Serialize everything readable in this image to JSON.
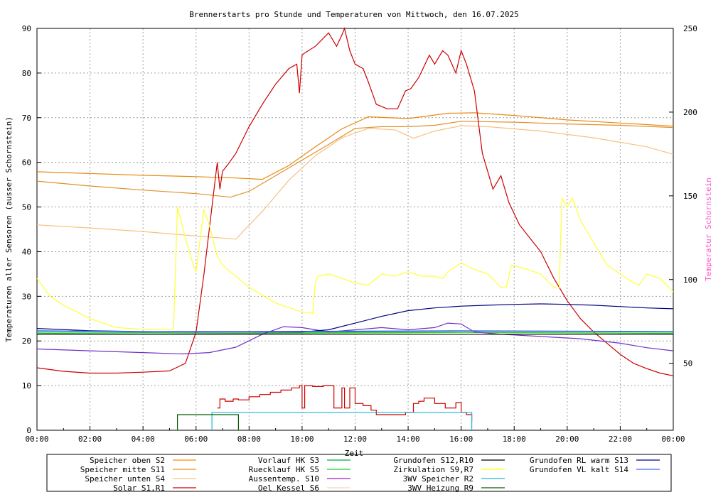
{
  "chart_data": {
    "type": "line",
    "title": "Brennerstarts pro Stunde und Temperaturen von Mittwoch, den 16.07.2025",
    "xlabel": "Zeit",
    "ylabel": "Temperaturen aller Sensoren (ausser Schornstein)",
    "y2label": "Temperatur Schornstein",
    "xlim": [
      0,
      24
    ],
    "ylim": [
      0,
      90
    ],
    "y2lim": [
      10,
      250
    ],
    "grid": true,
    "x_ticks": [
      "00:00",
      "02:00",
      "04:00",
      "06:00",
      "08:00",
      "10:00",
      "12:00",
      "14:00",
      "16:00",
      "18:00",
      "20:00",
      "22:00",
      "00:00"
    ],
    "y_ticks": [
      "0",
      "10",
      "20",
      "30",
      "40",
      "50",
      "60",
      "70",
      "80",
      "90"
    ],
    "y2_ticks": [
      "50",
      "100",
      "150",
      "200",
      "250"
    ],
    "legend_position": "bottom",
    "legend": [
      {
        "label": "Speicher oben",
        "code": "S2",
        "color": "#ff8c00"
      },
      {
        "label": "Speicher mitte",
        "code": "S11",
        "color": "#e8901c"
      },
      {
        "label": "Speicher unten",
        "code": "S4",
        "color": "#f8c080"
      },
      {
        "label": "Solar",
        "code": "S1,R1",
        "color": "#cc0000"
      },
      {
        "label": "Vorlauf HK",
        "code": "S3",
        "color": "#00aa44"
      },
      {
        "label": "Ruecklauf HK",
        "code": "S5",
        "color": "#22cc22"
      },
      {
        "label": "Aussentemp.",
        "code": "S10",
        "color": "#a020c0"
      },
      {
        "label": "Oel Kessel",
        "code": "S6",
        "color": "#f0d8c0"
      },
      {
        "label": "Grundofen",
        "code": "S12,R10",
        "color": "#000000"
      },
      {
        "label": "Zirkulation",
        "code": "S9,R7",
        "color": "#ffff00"
      },
      {
        "label": "3WV Speicher",
        "code": "R2",
        "color": "#22b8d8"
      },
      {
        "label": "3WV Heizung",
        "code": "R9",
        "color": "#006000"
      },
      {
        "label": "Grundofen RL warm",
        "code": "S13",
        "color": "#000080"
      },
      {
        "label": "Grundofen VL kalt",
        "code": "S14",
        "color": "#4466ff"
      }
    ],
    "series": [
      {
        "name": "Speicher oben S2",
        "axis": "y",
        "color": "#e88a10",
        "x": [
          0,
          2,
          4,
          6,
          7.5,
          8.5,
          9.5,
          10.5,
          11.5,
          12.5,
          14,
          15.5,
          16.5,
          18,
          20,
          22,
          24
        ],
        "y": [
          57.9,
          57.5,
          57.1,
          56.8,
          56.5,
          56.2,
          59.3,
          63.5,
          67.5,
          70.2,
          69.8,
          71.0,
          71.1,
          70.5,
          69.5,
          68.8,
          68.1
        ]
      },
      {
        "name": "Speicher mitte S11",
        "axis": "y",
        "color": "#e0902a",
        "x": [
          0,
          2,
          4,
          6,
          7.3,
          8,
          9,
          10,
          11,
          12,
          13,
          14,
          15,
          16,
          18,
          20,
          22,
          24
        ],
        "y": [
          55.8,
          54.7,
          53.8,
          53.0,
          52.2,
          53.5,
          57.0,
          60.5,
          64.0,
          67.6,
          68.0,
          68.0,
          68.3,
          69.2,
          69.0,
          68.6,
          68.3,
          67.8
        ]
      },
      {
        "name": "Speicher unten S4",
        "axis": "y",
        "color": "#f8c080",
        "x": [
          0,
          2,
          4,
          6,
          7.5,
          8.5,
          9.5,
          10.5,
          11.5,
          12.5,
          13.5,
          14.2,
          15,
          16,
          17,
          19,
          21,
          23,
          24
        ],
        "y": [
          46.0,
          45.3,
          44.5,
          43.5,
          42.8,
          49.0,
          56.0,
          61.5,
          65.5,
          67.6,
          67.3,
          65.4,
          67.0,
          68.2,
          68.0,
          67.0,
          65.5,
          63.5,
          61.8
        ]
      },
      {
        "name": "Solar S1,R1",
        "axis": "y",
        "color": "#cc0000",
        "x": [
          0,
          1,
          2,
          3,
          4,
          5,
          5.6,
          6,
          6.3,
          6.6,
          6.8,
          6.9,
          7.0,
          7.2,
          7.5,
          8,
          8.5,
          9,
          9.5,
          9.8,
          9.9,
          10.0,
          10.1,
          10.5,
          11,
          11.3,
          11.5,
          11.6,
          11.8,
          12,
          12.3,
          12.5,
          12.8,
          13.2,
          13.6,
          13.9,
          14.1,
          14.4,
          14.8,
          15,
          15.3,
          15.5,
          15.8,
          16,
          16.2,
          16.5,
          16.8,
          17.2,
          17.5,
          17.8,
          18.2,
          18.6,
          19,
          19.5,
          20,
          20.5,
          21,
          21.5,
          22,
          22.5,
          23,
          23.5,
          24
        ],
        "y": [
          14.0,
          13.2,
          12.8,
          12.8,
          13.0,
          13.3,
          15.0,
          22.0,
          35.0,
          50.0,
          60.0,
          54.0,
          58.0,
          59.5,
          62.0,
          68.0,
          73.0,
          77.5,
          81.0,
          82.0,
          75.5,
          84.0,
          84.5,
          86.0,
          89.0,
          86.0,
          88.5,
          90.0,
          85.0,
          82.0,
          81.0,
          78.0,
          73.0,
          72.0,
          72.0,
          76.0,
          76.5,
          79.0,
          84.0,
          82.0,
          85.0,
          84.0,
          80.0,
          85.0,
          82.0,
          76.0,
          62.0,
          54.0,
          57.0,
          51.0,
          46.0,
          43.0,
          40.0,
          34.0,
          29.0,
          25.0,
          22.0,
          19.5,
          17.0,
          15.0,
          13.8,
          12.8,
          12.2
        ]
      },
      {
        "name": "Vorlauf HK S3",
        "axis": "y",
        "color": "#00aa44",
        "x": [
          0,
          4,
          8,
          12,
          16,
          20,
          24
        ],
        "y": [
          22.0,
          21.9,
          22.0,
          22.0,
          22.2,
          22.1,
          22.0
        ]
      },
      {
        "name": "Ruecklauf HK S5",
        "axis": "y",
        "color": "#22cc22",
        "x": [
          0,
          4,
          8,
          12,
          16,
          20,
          24
        ],
        "y": [
          21.7,
          21.6,
          21.7,
          21.8,
          21.9,
          21.8,
          21.7
        ]
      },
      {
        "name": "Aussentemp. S10",
        "axis": "y",
        "color": "#7030c8",
        "x": [
          0,
          2,
          4,
          5.5,
          6.5,
          7.5,
          8.5,
          9.3,
          10,
          11,
          12,
          13,
          14,
          15,
          15.5,
          16,
          16.5,
          17.5,
          19,
          20.5,
          22,
          23,
          24
        ],
        "y": [
          18.2,
          17.8,
          17.4,
          17.1,
          17.4,
          18.6,
          21.5,
          23.2,
          23.0,
          22.0,
          22.5,
          23.0,
          22.5,
          23.0,
          24.0,
          23.8,
          22.0,
          21.5,
          21.0,
          20.5,
          19.5,
          18.5,
          17.8
        ]
      },
      {
        "name": "Zirkulation S9,R7",
        "axis": "y",
        "color": "#ffff33",
        "x": [
          0,
          0.5,
          1,
          2,
          3,
          4,
          5.1,
          5.15,
          5.3,
          5.6,
          5.9,
          6.0,
          6.3,
          6.5,
          6.8,
          7,
          8,
          9,
          10,
          10.4,
          10.5,
          10.6,
          11,
          11.5,
          12,
          12.5,
          13,
          13.5,
          14,
          14.5,
          15,
          15.3,
          15.5,
          16,
          16.5,
          17,
          17.5,
          17.7,
          17.9,
          18.5,
          19,
          19.5,
          19.7,
          19.8,
          20,
          20.2,
          20.5,
          21,
          21.5,
          22,
          22.5,
          22.7,
          23,
          23.5,
          24
        ],
        "y": [
          34.0,
          30.0,
          28.0,
          25.0,
          23.0,
          22.6,
          22.6,
          22.6,
          50.0,
          43.0,
          37.0,
          35.5,
          49.5,
          46.0,
          39.0,
          37.0,
          32.0,
          28.5,
          26.5,
          26.2,
          33.0,
          34.5,
          35.0,
          34.0,
          33.0,
          32.5,
          35.0,
          34.5,
          35.5,
          34.5,
          34.5,
          34.0,
          35.5,
          37.5,
          36.0,
          35.0,
          32.0,
          32.0,
          37.0,
          36.0,
          35.0,
          32.0,
          32.0,
          52.0,
          50.0,
          52.0,
          47.0,
          42.0,
          37.0,
          35.0,
          33.0,
          32.5,
          35.0,
          34.0,
          31.0
        ]
      },
      {
        "name": "Grundofen S12,R10",
        "axis": "y",
        "color": "#000000",
        "x": [
          0,
          24
        ],
        "y": [
          21.5,
          21.5
        ]
      },
      {
        "name": "Grundofen RL warm S13",
        "axis": "y",
        "color": "#000080",
        "x": [
          0,
          2,
          4,
          6,
          8,
          10,
          11,
          12,
          13,
          14,
          15,
          16,
          17,
          18,
          19,
          20,
          21,
          22,
          23,
          24
        ],
        "y": [
          22.8,
          22.3,
          22.1,
          22.0,
          22.0,
          22.0,
          22.5,
          24.0,
          25.5,
          26.8,
          27.4,
          27.8,
          28.0,
          28.2,
          28.3,
          28.2,
          28.0,
          27.7,
          27.4,
          27.2
        ]
      },
      {
        "name": "Grundofen VL kalt S14",
        "axis": "y",
        "color": "#4466ff",
        "x": [
          0,
          4,
          8,
          12,
          16,
          20,
          24
        ],
        "y": [
          22.3,
          22.1,
          22.1,
          22.2,
          22.3,
          22.2,
          22.1
        ]
      },
      {
        "name": "Brennerstarts",
        "axis": "y",
        "color": "#cc0000",
        "step": true,
        "x": [
          6.8,
          6.9,
          7.1,
          7.4,
          7.6,
          8.0,
          8.4,
          8.8,
          9.2,
          9.6,
          9.9,
          10.0,
          10.1,
          10.4,
          10.8,
          11.2,
          11.5,
          11.6,
          11.8,
          12.0,
          12.3,
          12.6,
          12.8,
          13.0,
          13.3,
          13.6,
          13.9,
          14.2,
          14.4,
          14.6,
          15.0,
          15.4,
          15.8,
          16.0,
          16.2,
          16.4
        ],
        "y": [
          5.0,
          7.0,
          6.5,
          7.0,
          6.8,
          7.5,
          8.0,
          8.5,
          9.0,
          9.5,
          10.0,
          5.0,
          10.0,
          9.8,
          10.0,
          5.0,
          9.5,
          5.0,
          9.5,
          6.0,
          5.5,
          4.5,
          3.5,
          3.5,
          3.5,
          3.5,
          4.0,
          6.0,
          6.5,
          7.2,
          6.0,
          5.0,
          6.2,
          4.0,
          3.5,
          2.0
        ]
      },
      {
        "name": "3WV Speicher R2",
        "axis": "y",
        "color": "#22b8d8",
        "step": true,
        "x": [
          6.6,
          6.6,
          16.4,
          16.4
        ],
        "y": [
          0,
          4,
          4,
          0
        ]
      },
      {
        "name": "3WV Heizung R9",
        "axis": "y",
        "color": "#006000",
        "step": true,
        "x": [
          5.3,
          5.3,
          7.6,
          7.6
        ],
        "y": [
          0,
          3.5,
          3.5,
          0
        ]
      }
    ]
  }
}
